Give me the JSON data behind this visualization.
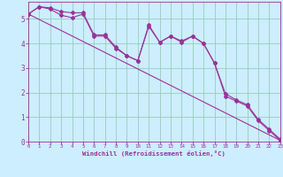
{
  "xlabel": "Windchill (Refroidissement éolien,°C)",
  "background_color": "#cceeff",
  "line_color": "#993399",
  "grid_color": "#aaddcc",
  "xlim": [
    0,
    23
  ],
  "ylim": [
    0,
    5.7
  ],
  "yticks": [
    0,
    1,
    2,
    3,
    4,
    5
  ],
  "xticks": [
    0,
    1,
    2,
    3,
    4,
    5,
    6,
    7,
    8,
    9,
    10,
    11,
    12,
    13,
    14,
    15,
    16,
    17,
    18,
    19,
    20,
    21,
    22,
    23
  ],
  "line1_x": [
    0,
    1,
    2,
    3,
    4,
    5,
    6,
    7,
    8,
    9,
    10,
    11,
    12,
    13,
    14,
    15,
    16,
    17,
    18,
    19,
    20,
    21,
    22,
    23
  ],
  "line1_y": [
    5.2,
    5.5,
    5.4,
    5.15,
    5.05,
    5.2,
    4.3,
    4.3,
    3.8,
    3.5,
    3.3,
    4.75,
    4.05,
    4.3,
    4.05,
    4.3,
    4.0,
    3.2,
    1.85,
    1.65,
    1.45,
    0.85,
    0.45,
    0.05
  ],
  "line2_x": [
    0,
    1,
    2,
    3,
    4,
    5,
    6,
    7,
    8,
    9,
    10,
    11,
    12,
    13,
    14,
    15,
    16,
    17,
    18,
    19,
    20,
    21,
    22,
    23
  ],
  "line2_y": [
    5.2,
    5.5,
    5.45,
    5.3,
    5.25,
    5.25,
    4.35,
    4.35,
    3.85,
    3.5,
    3.3,
    4.7,
    4.05,
    4.3,
    4.1,
    4.3,
    4.0,
    3.2,
    1.95,
    1.7,
    1.5,
    0.9,
    0.5,
    0.1
  ],
  "line3_x": [
    0,
    23
  ],
  "line3_y": [
    5.2,
    0.05
  ]
}
